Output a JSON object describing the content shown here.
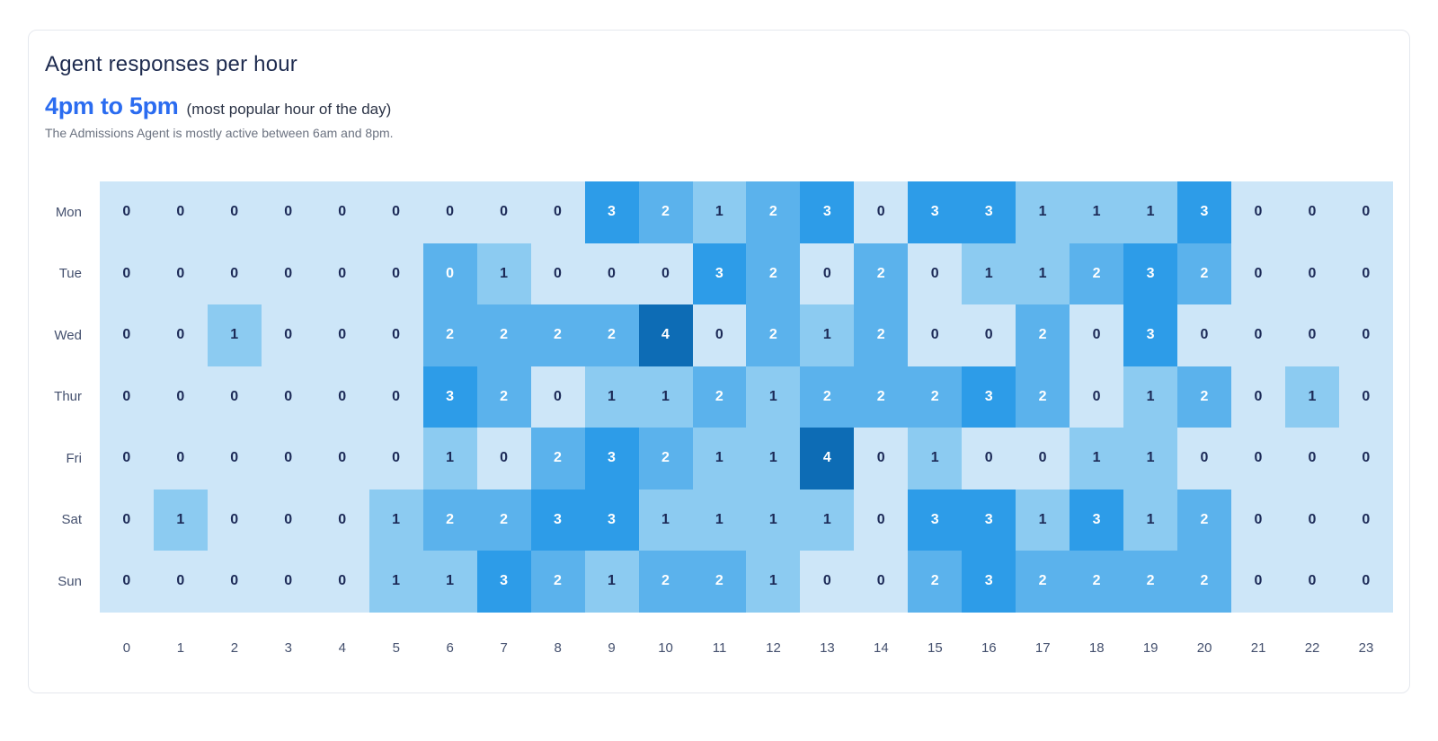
{
  "card": {
    "title": "Agent responses per hour",
    "highlight": "4pm to 5pm",
    "highlight_note": "(most popular hour of the day)",
    "description": "The Admissions Agent is mostly active between 6am and 8pm."
  },
  "chart_data": {
    "type": "heatmap",
    "title": "Agent responses per hour",
    "xlabels": [
      "0",
      "1",
      "2",
      "3",
      "4",
      "5",
      "6",
      "7",
      "8",
      "9",
      "10",
      "11",
      "12",
      "13",
      "14",
      "15",
      "16",
      "17",
      "18",
      "19",
      "20",
      "21",
      "22",
      "23"
    ],
    "ylabels": [
      "Mon",
      "Tue",
      "Wed",
      "Thur",
      "Fri",
      "Sat",
      "Sun"
    ],
    "series": [
      {
        "name": "Mon",
        "values": [
          0,
          0,
          0,
          0,
          0,
          0,
          0,
          0,
          0,
          3,
          2,
          1,
          2,
          3,
          0,
          3,
          3,
          1,
          1,
          1,
          3,
          0,
          0,
          0
        ]
      },
      {
        "name": "Tue",
        "values": [
          0,
          0,
          0,
          0,
          0,
          0,
          0,
          1,
          0,
          0,
          0,
          3,
          2,
          0,
          2,
          0,
          1,
          1,
          2,
          3,
          2,
          0,
          0,
          0
        ]
      },
      {
        "name": "Wed",
        "values": [
          0,
          0,
          1,
          0,
          0,
          0,
          2,
          2,
          2,
          2,
          4,
          0,
          2,
          1,
          2,
          0,
          0,
          2,
          0,
          3,
          0,
          0,
          0,
          0
        ]
      },
      {
        "name": "Thur",
        "values": [
          0,
          0,
          0,
          0,
          0,
          0,
          3,
          2,
          0,
          1,
          1,
          2,
          1,
          2,
          2,
          2,
          3,
          2,
          0,
          1,
          2,
          0,
          1,
          0
        ]
      },
      {
        "name": "Fri",
        "values": [
          0,
          0,
          0,
          0,
          0,
          0,
          1,
          0,
          2,
          3,
          2,
          1,
          1,
          4,
          0,
          1,
          0,
          0,
          1,
          1,
          0,
          0,
          0,
          0
        ]
      },
      {
        "name": "Sat",
        "values": [
          0,
          1,
          0,
          0,
          0,
          1,
          2,
          2,
          3,
          3,
          1,
          1,
          1,
          1,
          0,
          3,
          3,
          1,
          3,
          1,
          2,
          0,
          0,
          0
        ]
      },
      {
        "name": "Sun",
        "values": [
          0,
          0,
          0,
          0,
          0,
          1,
          1,
          3,
          2,
          1,
          2,
          2,
          1,
          0,
          0,
          2,
          3,
          2,
          2,
          2,
          2,
          0,
          0,
          0
        ]
      }
    ],
    "value_range": [
      0,
      4
    ],
    "color_scale": {
      "0": "#cde6f8",
      "1": "#8ccbf1",
      "2": "#5bb2ec",
      "3": "#2d9ce8",
      "4": "#0d6cb5"
    },
    "level_overrides": [
      {
        "row": "Tue",
        "hour": 6,
        "level": 2
      }
    ],
    "cell_text_dark": "#1c2a57",
    "cell_text_light": "#ffffff",
    "legend": "none",
    "grid": "off"
  },
  "colors": {
    "title": "#1e2b4f",
    "highlight": "#2b6cf0",
    "note": "#2b3346",
    "description": "#6b7280",
    "axis_labels": "#44506e",
    "card_border": "#e5e8ee",
    "card_bg": "#ffffff"
  }
}
